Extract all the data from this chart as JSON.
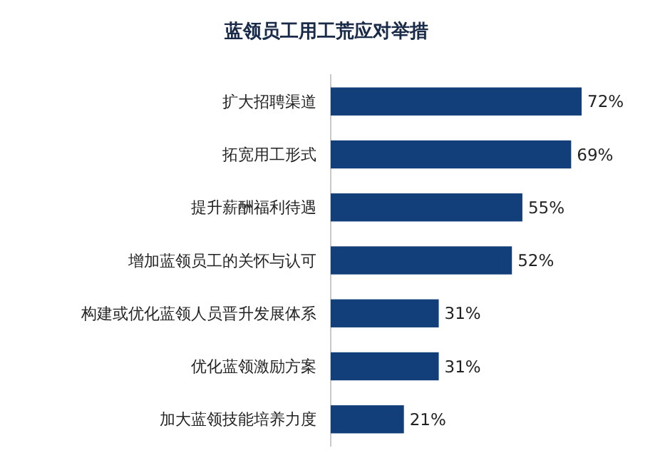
{
  "chart_data": {
    "type": "bar",
    "orientation": "horizontal",
    "title": "蓝领员工用工荒应对举措",
    "categories": [
      "扩大招聘渠道",
      "拓宽用工形式",
      "提升薪酬福利待遇",
      "增加蓝领员工的关怀与认可",
      "构建或优化蓝领人员晋升发展体系",
      "优化蓝领激励方案",
      "加大蓝领技能培养力度"
    ],
    "values": [
      72,
      69,
      55,
      52,
      31,
      31,
      21
    ],
    "value_labels": [
      "72%",
      "69%",
      "55%",
      "52%",
      "31%",
      "31%",
      "21%"
    ],
    "color": "#123f7a"
  }
}
